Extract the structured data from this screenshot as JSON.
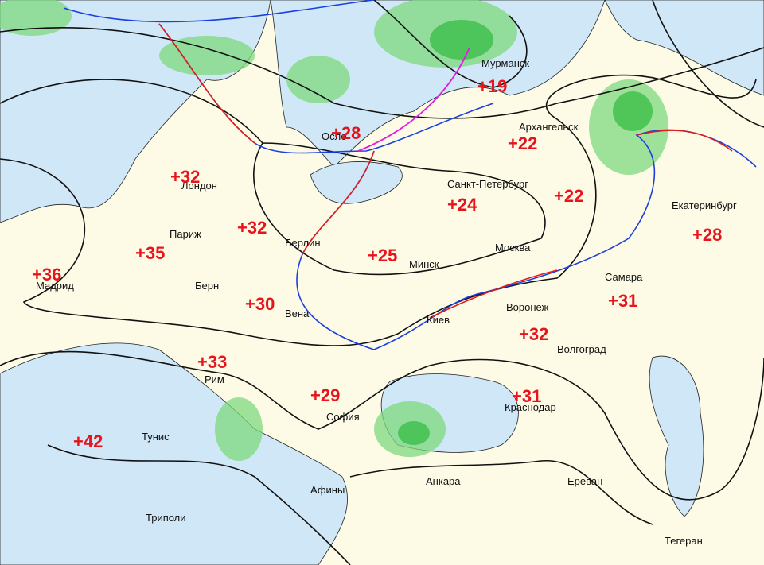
{
  "cities": [
    "Мурманск",
    "Архангельск",
    "Осло",
    "Санкт-Петербург",
    "Лондон",
    "Париж",
    "Берлин",
    "Минск",
    "Москва",
    "Екатеринбург",
    "Мадрид",
    "Берн",
    "Вена",
    "Киев",
    "Воронеж",
    "Самара",
    "Волгоград",
    "Рим",
    "София",
    "Краснодар",
    "Тунис",
    "Анкара",
    "Ереван",
    "Афины",
    "Триполи",
    "Тегеран"
  ],
  "temperatures": [
    "+19",
    "+28",
    "+22",
    "+32",
    "+24",
    "+22",
    "+28",
    "+32",
    "+35",
    "+25",
    "+36",
    "+30",
    "+31",
    "+32",
    "+33",
    "+29",
    "+31",
    "+42"
  ]
}
